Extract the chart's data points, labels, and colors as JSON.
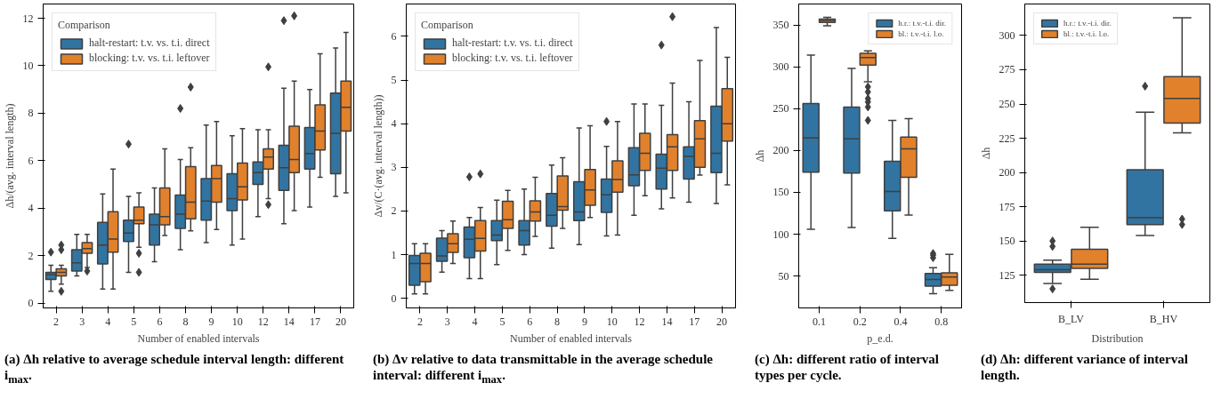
{
  "chart_data": [
    {
      "type": "box",
      "xlabel": "Number of enabled intervals",
      "ylabel": "Δh/(avg. interval length)",
      "categories": [
        "2",
        "3",
        "4",
        "5",
        "6",
        "8",
        "9",
        "10",
        "12",
        "14",
        "17",
        "20"
      ],
      "ylim": [
        -0.2,
        12.6
      ],
      "yticks": [
        0,
        2,
        4,
        6,
        8,
        10,
        12
      ],
      "legend": "top left",
      "legend_title": "Comparison",
      "marker": "diamond",
      "annotations": [
        "(a) Δh relative to average schedule interval length: different i$_{max}$."
      ],
      "series": [
        {
          "name": "halt-restart: t.v. vs. t.i. direct",
          "color": "#3274a1",
          "boxes": [
            {
              "low": 0.5,
              "q1": 1.0,
              "median": 1.2,
              "q3": 1.3,
              "high": 1.6,
              "outliers": [
                2.15
              ]
            },
            {
              "low": 1.15,
              "q1": 1.35,
              "median": 1.7,
              "q3": 2.25,
              "high": 2.9
            },
            {
              "low": 0.6,
              "q1": 1.65,
              "median": 2.45,
              "q3": 3.4,
              "high": 4.6
            },
            {
              "low": 1.3,
              "q1": 2.6,
              "median": 2.95,
              "q3": 3.5,
              "high": 4.5,
              "outliers": [
                6.7
              ]
            },
            {
              "low": 1.75,
              "q1": 2.45,
              "median": 3.3,
              "q3": 3.75,
              "high": 4.85
            },
            {
              "low": 2.25,
              "q1": 3.15,
              "median": 3.75,
              "q3": 4.55,
              "high": 6.05,
              "outliers": [
                8.2
              ]
            },
            {
              "low": 2.55,
              "q1": 3.5,
              "median": 4.3,
              "q3": 5.25,
              "high": 7.5
            },
            {
              "low": 2.45,
              "q1": 3.9,
              "median": 4.4,
              "q3": 5.45,
              "high": 7.05
            },
            {
              "low": 3.65,
              "q1": 5.0,
              "median": 5.5,
              "q3": 5.95,
              "high": 7.3
            },
            {
              "low": 3.35,
              "q1": 4.75,
              "median": 5.7,
              "q3": 6.65,
              "high": 9.05,
              "outliers": [
                11.9
              ]
            },
            {
              "low": 4.05,
              "q1": 5.65,
              "median": 6.3,
              "q3": 7.4,
              "high": 9.0
            },
            {
              "low": 4.5,
              "q1": 5.45,
              "median": 7.15,
              "q3": 8.85,
              "high": 10.75
            }
          ]
        },
        {
          "name": "blocking: t.v. vs. t.i. leftover",
          "color": "#e1812c",
          "boxes": [
            {
              "low": 0.8,
              "q1": 1.15,
              "median": 1.3,
              "q3": 1.45,
              "high": 1.6,
              "outliers": [
                0.5,
                2.25,
                2.45
              ]
            },
            {
              "low": 1.5,
              "q1": 2.1,
              "median": 2.3,
              "q3": 2.55,
              "high": 2.9,
              "outliers": [
                1.35
              ]
            },
            {
              "low": 0.6,
              "q1": 2.15,
              "median": 2.7,
              "q3": 3.85,
              "high": 5.65
            },
            {
              "low": 2.35,
              "q1": 3.35,
              "median": 3.5,
              "q3": 4.05,
              "high": 4.65,
              "outliers": [
                1.3,
                2.1
              ]
            },
            {
              "low": 2.85,
              "q1": 3.3,
              "median": 3.65,
              "q3": 4.85,
              "high": 6.5
            },
            {
              "low": 3.05,
              "q1": 3.55,
              "median": 4.25,
              "q3": 5.75,
              "high": 6.55,
              "outliers": [
                9.1
              ]
            },
            {
              "low": 3.1,
              "q1": 4.25,
              "median": 5.25,
              "q3": 5.8,
              "high": 7.65
            },
            {
              "low": 2.7,
              "q1": 4.35,
              "median": 4.9,
              "q3": 5.9,
              "high": 7.35
            },
            {
              "low": 4.4,
              "q1": 5.65,
              "median": 6.15,
              "q3": 6.5,
              "high": 7.3,
              "outliers": [
                4.15,
                9.95
              ]
            },
            {
              "low": 3.9,
              "q1": 5.5,
              "median": 6.05,
              "q3": 7.45,
              "high": 9.35,
              "outliers": [
                12.1
              ]
            },
            {
              "low": 5.3,
              "q1": 6.45,
              "median": 7.25,
              "q3": 8.35,
              "high": 10.5
            },
            {
              "low": 4.65,
              "q1": 7.25,
              "median": 8.25,
              "q3": 9.35,
              "high": 11.4
            }
          ]
        }
      ]
    },
    {
      "type": "box",
      "xlabel": "Number of enabled intervals",
      "ylabel": "Δv/(C·(avg. interval length))",
      "categories": [
        "2",
        "3",
        "4",
        "5",
        "6",
        "8",
        "9",
        "10",
        "12",
        "14",
        "17",
        "20"
      ],
      "ylim": [
        -0.22,
        6.74
      ],
      "yticks": [
        0,
        1,
        2,
        3,
        4,
        5,
        6
      ],
      "legend": "top left",
      "legend_title": "Comparison",
      "marker": "diamond",
      "annotations": [
        "(b) Δv relative to data transmittable in the average schedule interval: different i$_{max}$."
      ],
      "series": [
        {
          "name": "halt-restart: t.v. vs. t.i. direct",
          "color": "#3274a1",
          "boxes": [
            {
              "low": 0.1,
              "q1": 0.3,
              "median": 0.8,
              "q3": 0.98,
              "high": 1.25
            },
            {
              "low": 0.6,
              "q1": 0.85,
              "median": 0.97,
              "q3": 1.38,
              "high": 1.55
            },
            {
              "low": 0.45,
              "q1": 0.93,
              "median": 1.35,
              "q3": 1.63,
              "high": 1.85,
              "outliers": [
                2.78
              ]
            },
            {
              "low": 0.77,
              "q1": 1.32,
              "median": 1.45,
              "q3": 1.78,
              "high": 2.25
            },
            {
              "low": 1.0,
              "q1": 1.22,
              "median": 1.55,
              "q3": 1.78,
              "high": 2.5
            },
            {
              "low": 1.15,
              "q1": 1.65,
              "median": 1.9,
              "q3": 2.4,
              "high": 3.05
            },
            {
              "low": 1.23,
              "q1": 1.78,
              "median": 1.98,
              "q3": 2.67,
              "high": 3.9
            },
            {
              "low": 1.43,
              "q1": 1.97,
              "median": 2.37,
              "q3": 2.73,
              "high": 3.48,
              "outliers": [
                4.05
              ]
            },
            {
              "low": 1.9,
              "q1": 2.58,
              "median": 2.83,
              "q3": 3.45,
              "high": 4.45
            },
            {
              "low": 2.05,
              "q1": 2.5,
              "median": 2.98,
              "q3": 3.3,
              "high": 4.42,
              "outliers": [
                5.8
              ]
            },
            {
              "low": 2.2,
              "q1": 2.73,
              "median": 3.25,
              "q3": 3.47,
              "high": 4.5
            },
            {
              "low": 2.17,
              "q1": 2.88,
              "median": 3.32,
              "q3": 4.4,
              "high": 6.2
            }
          ]
        },
        {
          "name": "blocking: t.v. vs. t.i. leftover",
          "color": "#e1812c",
          "boxes": [
            {
              "low": 0.1,
              "q1": 0.38,
              "median": 0.8,
              "q3": 1.03,
              "high": 1.25
            },
            {
              "low": 0.8,
              "q1": 1.05,
              "median": 1.25,
              "q3": 1.48,
              "high": 1.77
            },
            {
              "low": 0.45,
              "q1": 1.08,
              "median": 1.37,
              "q3": 1.78,
              "high": 2.08,
              "outliers": [
                2.85
              ]
            },
            {
              "low": 1.1,
              "q1": 1.6,
              "median": 1.8,
              "q3": 2.22,
              "high": 2.47
            },
            {
              "low": 1.42,
              "q1": 1.77,
              "median": 1.98,
              "q3": 2.23,
              "high": 2.77
            },
            {
              "low": 1.6,
              "q1": 2.02,
              "median": 2.1,
              "q3": 2.8,
              "high": 3.22
            },
            {
              "low": 1.85,
              "q1": 2.13,
              "median": 2.48,
              "q3": 2.95,
              "high": 3.95
            },
            {
              "low": 1.45,
              "q1": 2.43,
              "median": 2.72,
              "q3": 3.15,
              "high": 4.05
            },
            {
              "low": 2.35,
              "q1": 2.93,
              "median": 3.32,
              "q3": 3.78,
              "high": 4.45
            },
            {
              "low": 2.3,
              "q1": 2.93,
              "median": 3.47,
              "q3": 3.75,
              "high": 4.93,
              "outliers": [
                6.45
              ]
            },
            {
              "low": 2.82,
              "q1": 3.0,
              "median": 3.65,
              "q3": 4.07,
              "high": 5.45
            },
            {
              "low": 2.6,
              "q1": 3.6,
              "median": 4.0,
              "q3": 4.8,
              "high": 5.52
            }
          ]
        }
      ]
    },
    {
      "type": "box",
      "xlabel": "p_e.d.",
      "ylabel": "Δh",
      "categories": [
        "0.1",
        "0.2",
        "0.4",
        "0.8"
      ],
      "ylim": [
        12,
        375
      ],
      "yticks": [
        50,
        100,
        150,
        200,
        250,
        300,
        350
      ],
      "legend": "top right",
      "marker": "diamond",
      "annotations": [
        "(c) Δh: different ratio of interval types per cycle."
      ],
      "series": [
        {
          "name": "h.r.: t.v.-t.i. dir.",
          "color": "#3274a1",
          "boxes": [
            {
              "low": 106,
              "q1": 174,
              "median": 215,
              "q3": 256,
              "high": 314
            },
            {
              "low": 108,
              "q1": 173,
              "median": 214,
              "q3": 252,
              "high": 298
            },
            {
              "low": 95,
              "q1": 128,
              "median": 151,
              "q3": 187,
              "high": 236
            },
            {
              "low": 29,
              "q1": 38,
              "median": 46,
              "q3": 53,
              "high": 60,
              "outliers": [
                72,
                75,
                77
              ]
            }
          ]
        },
        {
          "name": "bl.: t.v.-t.i. l.o.",
          "color": "#e1812c",
          "boxes": [
            {
              "low": 349,
              "q1": 353,
              "median": 355,
              "q3": 357,
              "high": 359
            },
            {
              "low": 282,
              "q1": 302,
              "median": 311,
              "q3": 316,
              "high": 319,
              "outliers": [
                236,
                252,
                258,
                262,
                270,
                276
              ]
            },
            {
              "low": 123,
              "q1": 168,
              "median": 202,
              "q3": 216,
              "high": 238
            },
            {
              "low": 33,
              "q1": 39,
              "median": 49,
              "q3": 54,
              "high": 76
            }
          ]
        }
      ]
    },
    {
      "type": "box",
      "xlabel": "Distribution",
      "ylabel": "Δh",
      "categories": [
        "B_LV",
        "B_HV"
      ],
      "ylim": [
        105,
        323
      ],
      "yticks": [
        125,
        150,
        175,
        200,
        225,
        250,
        275,
        300
      ],
      "legend": "top left",
      "marker": "diamond",
      "annotations": [
        "(d) Δh: different variance of interval length."
      ],
      "series": [
        {
          "name": "h.r.: t.v.-t.i. dir.",
          "color": "#3274a1",
          "boxes": [
            {
              "low": 119,
              "q1": 127,
              "median": 129,
              "q3": 133,
              "high": 136,
              "outliers": [
                115,
                146,
                150
              ]
            },
            {
              "low": 154,
              "q1": 162,
              "median": 167,
              "q3": 202,
              "high": 244,
              "outliers": [
                263
              ]
            }
          ]
        },
        {
          "name": "bl.: t.v.-t.i. l.o.",
          "color": "#e1812c",
          "boxes": [
            {
              "low": 122,
              "q1": 130,
              "median": 133,
              "q3": 144,
              "high": 160
            },
            {
              "low": 229,
              "q1": 236,
              "median": 254,
              "q3": 270,
              "high": 313,
              "outliers": [
                162,
                166
              ]
            }
          ]
        }
      ]
    }
  ]
}
